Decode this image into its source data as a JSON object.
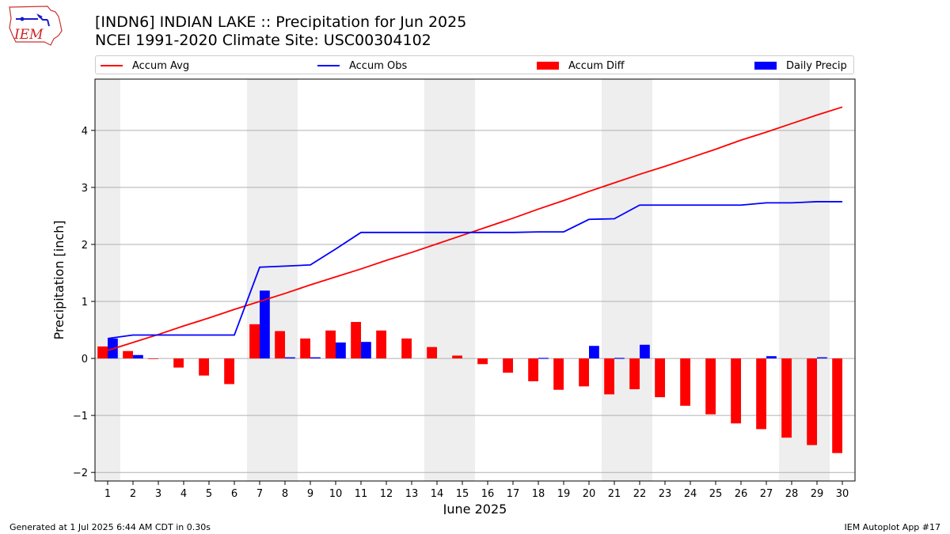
{
  "title_line1": "[INDN6] INDIAN LAKE :: Precipitation for Jun 2025",
  "title_line2": "NCEI 1991-2020 Climate Site: USC00304102",
  "logo_text": "IEM",
  "footer_left": "Generated at 1 Jul 2025 6:44 AM CDT in 0.30s",
  "footer_right": "IEM Autoplot App #17",
  "legend": [
    {
      "label": "Accum Avg",
      "kind": "line",
      "color": "#ff0000"
    },
    {
      "label": "Accum Obs",
      "kind": "line",
      "color": "#0000ff"
    },
    {
      "label": "Accum Diff",
      "kind": "bar",
      "color": "#ff0000"
    },
    {
      "label": "Daily Precip",
      "kind": "bar",
      "color": "#0000ff"
    }
  ],
  "chart_data": {
    "type": "bar",
    "xlabel": "June 2025",
    "ylabel": "Precipitation [inch]",
    "x": [
      1,
      2,
      3,
      4,
      5,
      6,
      7,
      8,
      9,
      10,
      11,
      12,
      13,
      14,
      15,
      16,
      17,
      18,
      19,
      20,
      21,
      22,
      23,
      24,
      25,
      26,
      27,
      28,
      29,
      30
    ],
    "ylim": [
      -2.15,
      4.9
    ],
    "yticks": [
      -2,
      -1,
      0,
      1,
      2,
      3,
      4
    ],
    "ytick_labels": [
      "−2",
      "−1",
      "0",
      "1",
      "2",
      "3",
      "4"
    ],
    "grid": true,
    "shaded_weekends": [
      [
        1,
        1
      ],
      [
        7,
        8
      ],
      [
        14,
        15
      ],
      [
        21,
        22
      ],
      [
        28,
        29
      ]
    ],
    "series": [
      {
        "name": "Accum Avg",
        "type": "line",
        "color": "#ff0000",
        "values": [
          0.14,
          0.28,
          0.42,
          0.57,
          0.71,
          0.86,
          1.0,
          1.14,
          1.29,
          1.43,
          1.57,
          1.72,
          1.86,
          2.01,
          2.16,
          2.31,
          2.46,
          2.62,
          2.77,
          2.93,
          3.08,
          3.23,
          3.37,
          3.52,
          3.67,
          3.83,
          3.97,
          4.12,
          4.27,
          4.41
        ]
      },
      {
        "name": "Accum Obs",
        "type": "line",
        "color": "#0000ff",
        "values": [
          0.35,
          0.41,
          0.41,
          0.41,
          0.41,
          0.41,
          1.6,
          1.62,
          1.64,
          1.92,
          2.21,
          2.21,
          2.21,
          2.21,
          2.21,
          2.21,
          2.21,
          2.22,
          2.22,
          2.44,
          2.45,
          2.69,
          2.69,
          2.69,
          2.69,
          2.69,
          2.73,
          2.73,
          2.75,
          2.75
        ]
      },
      {
        "name": "Accum Diff",
        "type": "bar",
        "color": "#ff0000",
        "values": [
          0.21,
          0.13,
          -0.01,
          -0.16,
          -0.3,
          -0.45,
          0.6,
          0.48,
          0.35,
          0.49,
          0.64,
          0.49,
          0.35,
          0.2,
          0.05,
          -0.1,
          -0.25,
          -0.4,
          -0.55,
          -0.49,
          -0.63,
          -0.54,
          -0.68,
          -0.83,
          -0.98,
          -1.14,
          -1.24,
          -1.39,
          -1.52,
          -1.66
        ]
      },
      {
        "name": "Daily Precip",
        "type": "bar",
        "color": "#0000ff",
        "values": [
          0.35,
          0.06,
          0.0,
          0.0,
          0.0,
          0.0,
          1.19,
          0.02,
          0.02,
          0.28,
          0.29,
          0.0,
          0.0,
          0.0,
          0.0,
          0.0,
          0.0,
          0.01,
          0.0,
          0.22,
          0.01,
          0.24,
          0.0,
          0.0,
          0.0,
          0.0,
          0.04,
          0.0,
          0.02,
          0.0
        ]
      }
    ]
  }
}
